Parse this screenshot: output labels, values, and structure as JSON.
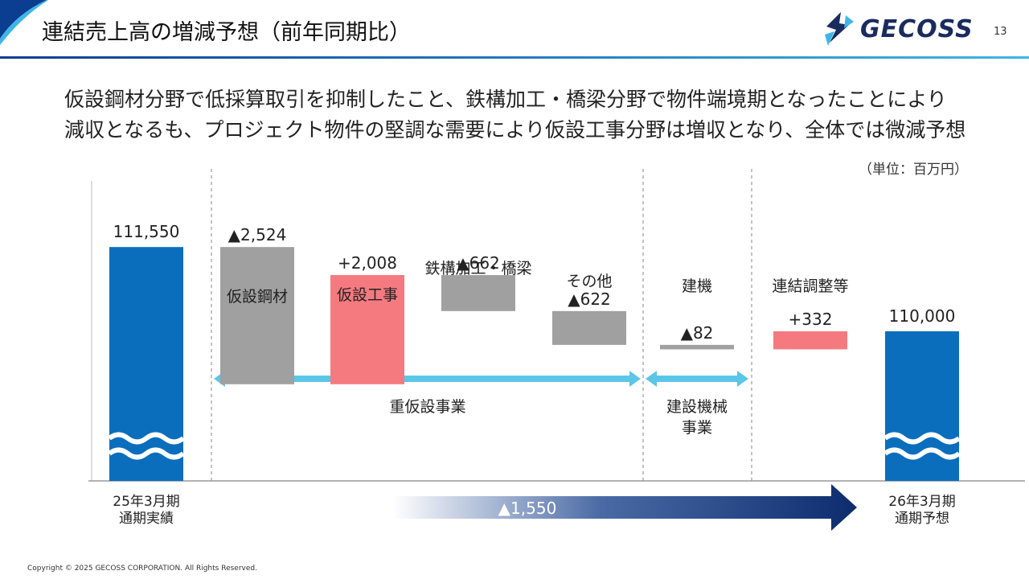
{
  "header": {
    "title": "連結売上高の増減予想（前年同期比）",
    "logo_text": "GECOSS",
    "page_number": "13"
  },
  "headline": {
    "line1": "仮設鋼材分野で低採算取引を抑制したこと、鉄構加工・橋梁分野で物件端境期となったことにより",
    "line2": "減収となるも、プロジェクト物件の堅調な需要により仮設工事分野は増収となり、全体では微減予想"
  },
  "unit": "（単位：百万円）",
  "colors": {
    "total": "#0a6ebd",
    "decrease": "#a0a0a0",
    "increase": "#f47a7f",
    "bracket": "#5bc6e8",
    "total_arrow": "#0d2c6e",
    "divider": "#999999"
  },
  "chart_data": {
    "type": "bar",
    "subtype": "waterfall",
    "start": {
      "label": [
        "25年3月期",
        "通期実績"
      ],
      "value": 111550,
      "value_label": "111,550"
    },
    "end": {
      "label": [
        "26年3月期",
        "通期予想"
      ],
      "value": 110000,
      "value_label": "110,000"
    },
    "steps": [
      {
        "category": [
          "仮設鋼材"
        ],
        "delta": -2524,
        "value_label": "▲2,524",
        "kind": "decrease"
      },
      {
        "category": [
          "仮設工事"
        ],
        "delta": 2008,
        "value_label": "+2,008",
        "kind": "increase"
      },
      {
        "category": [
          "鉄構加工・橋梁"
        ],
        "delta": -662,
        "value_label": "▲662",
        "kind": "decrease"
      },
      {
        "category": [
          "その他"
        ],
        "delta": -622,
        "value_label": "▲622",
        "kind": "decrease"
      },
      {
        "category": [
          "建機"
        ],
        "delta": -82,
        "value_label": "▲82",
        "kind": "decrease"
      },
      {
        "category": [
          "連結調整等"
        ],
        "delta": 332,
        "value_label": "+332",
        "kind": "increase"
      }
    ],
    "segments": [
      {
        "label": [
          "重仮設事業"
        ],
        "steps": [
          0,
          1,
          2,
          3
        ]
      },
      {
        "label": [
          "建設機械",
          "事業"
        ],
        "steps": [
          4
        ]
      }
    ],
    "total_change": {
      "value": -1550,
      "label": "▲1,550"
    },
    "y_axis_broken": true
  },
  "footer": {
    "copyright": "Copyright © 2025 GECOSS CORPORATION. All Rights Reserved."
  }
}
